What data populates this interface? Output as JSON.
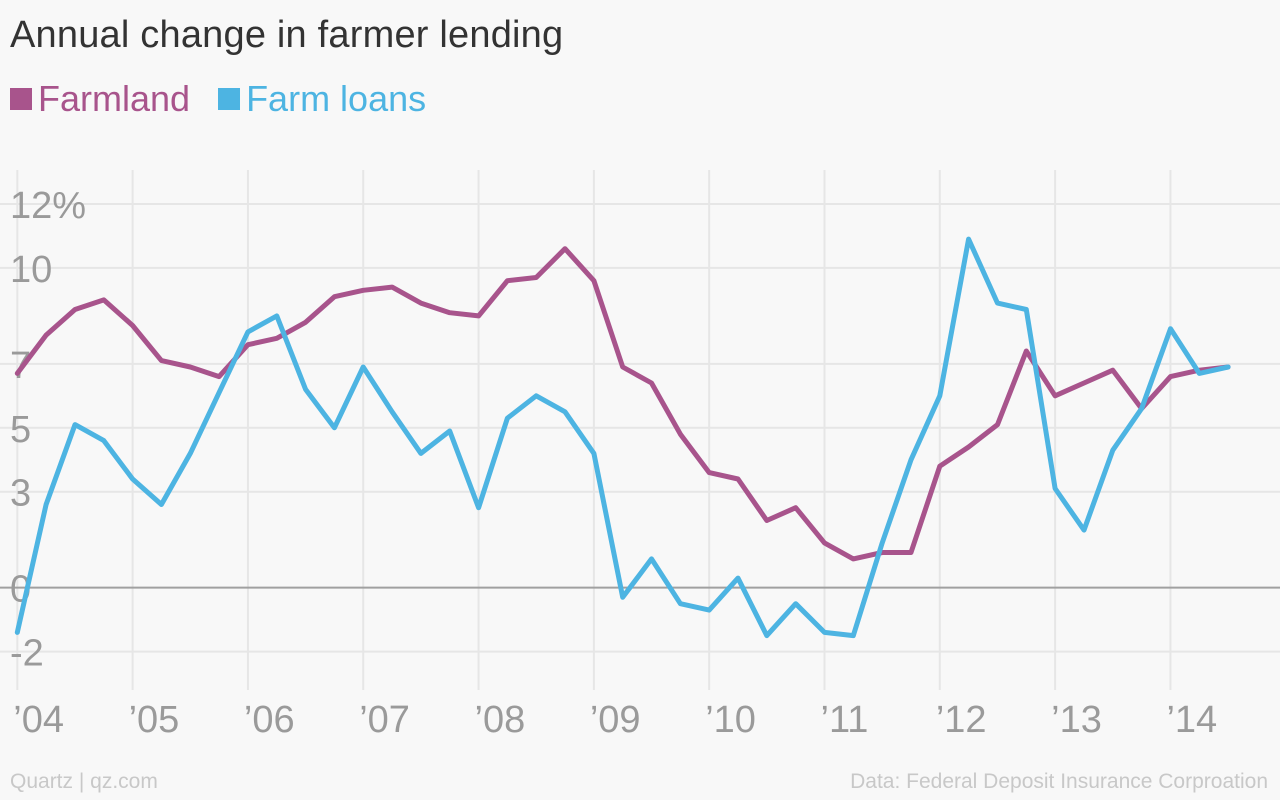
{
  "title": "Annual change in farmer lending",
  "footer": {
    "source_left": "Quartz | qz.com",
    "source_right": "Data: Federal Deposit Insurance Corproation"
  },
  "colors": {
    "farmland": "#a8548c",
    "farm_loans": "#4db4e2",
    "grid": "#e6e6e6",
    "zero_line": "#a0a0a0",
    "tick_text": "#9a9a9a"
  },
  "chart_data": {
    "type": "line",
    "title": "Annual change in farmer lending",
    "xlabel": "",
    "ylabel": "",
    "xlim": [
      2003.85,
      2014.95
    ],
    "ylim": [
      -3.2,
      14
    ],
    "y_ticks": [
      12,
      10,
      7,
      5,
      3,
      0,
      -2
    ],
    "y_tick_labels": [
      "12%",
      "10",
      "7",
      "5",
      "3",
      "0",
      "-2"
    ],
    "x_ticks": [
      2004,
      2005,
      2006,
      2007,
      2008,
      2009,
      2010,
      2011,
      2012,
      2013,
      2014
    ],
    "x_tick_labels": [
      "’04",
      "’05",
      "’06",
      "’07",
      "’08",
      "’09",
      "’10",
      "’11",
      "’12",
      "’13",
      "’14"
    ],
    "grid": true,
    "legend_position": "top-left",
    "x": [
      2004.0,
      2004.25,
      2004.5,
      2004.75,
      2005.0,
      2005.25,
      2005.5,
      2005.75,
      2006.0,
      2006.25,
      2006.5,
      2006.75,
      2007.0,
      2007.25,
      2007.5,
      2007.75,
      2008.0,
      2008.25,
      2008.5,
      2008.75,
      2009.0,
      2009.25,
      2009.5,
      2009.75,
      2010.0,
      2010.25,
      2010.5,
      2010.75,
      2011.0,
      2011.25,
      2011.5,
      2011.75,
      2012.0,
      2012.25,
      2012.5,
      2012.75,
      2013.0,
      2013.25,
      2013.5,
      2013.75,
      2014.0,
      2014.25,
      2014.5
    ],
    "series": [
      {
        "name": "Farmland",
        "values": [
          6.7,
          7.9,
          8.7,
          9.0,
          8.2,
          7.1,
          6.9,
          6.6,
          7.6,
          7.8,
          8.3,
          9.1,
          9.3,
          9.4,
          8.9,
          8.6,
          8.5,
          9.6,
          9.7,
          10.6,
          9.6,
          6.9,
          6.4,
          4.8,
          3.6,
          3.4,
          2.1,
          2.5,
          1.4,
          0.9,
          1.1,
          1.1,
          3.8,
          4.4,
          5.1,
          7.4,
          6.0,
          6.4,
          6.8,
          5.6,
          6.6,
          6.8,
          6.9
        ]
      },
      {
        "name": "Farm loans",
        "values": [
          -1.4,
          2.6,
          5.1,
          4.6,
          3.4,
          2.6,
          4.2,
          6.1,
          8.0,
          8.5,
          6.2,
          5.0,
          6.9,
          5.5,
          4.2,
          4.9,
          2.5,
          5.3,
          6.0,
          5.5,
          4.2,
          -0.3,
          0.9,
          -0.5,
          -0.7,
          0.3,
          -1.5,
          -0.5,
          -1.4,
          -1.5,
          1.4,
          4.0,
          6.0,
          10.9,
          8.9,
          8.7,
          3.1,
          1.8,
          4.3,
          5.6,
          8.1,
          6.7,
          6.9
        ]
      }
    ]
  }
}
